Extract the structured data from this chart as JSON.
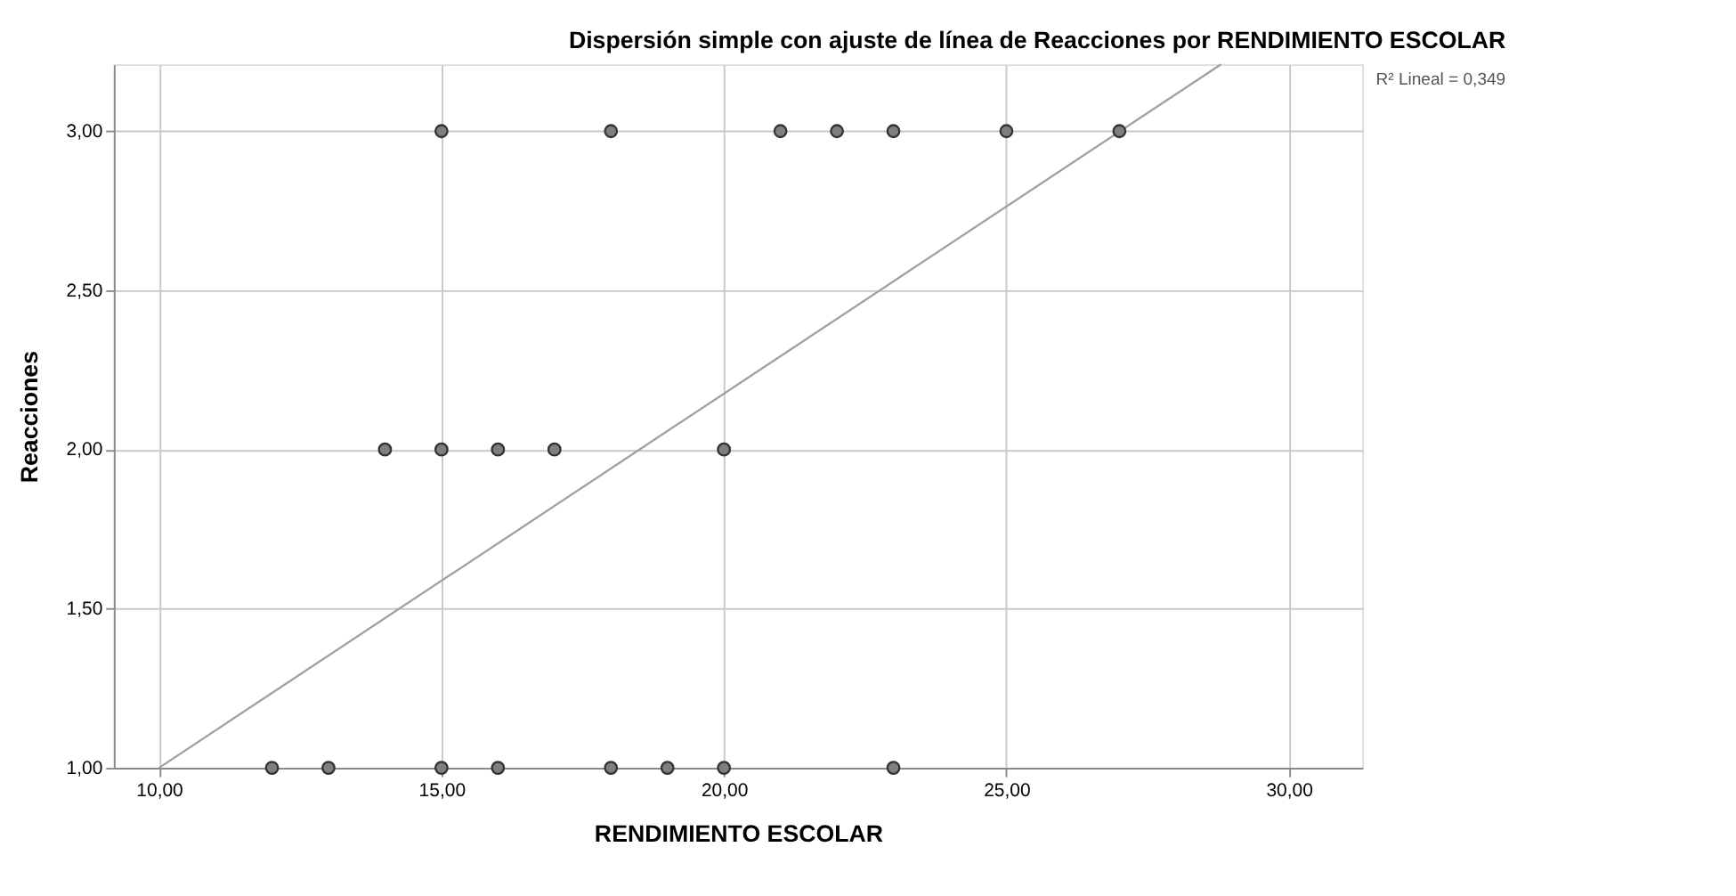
{
  "chart_data": {
    "type": "scatter",
    "title": "Dispersión simple con ajuste de línea de Reacciones por RENDIMIENTO ESCOLAR",
    "xlabel": "RENDIMIENTO ESCOLAR",
    "ylabel": "Reacciones",
    "annotations": [
      "R² Lineal = 0,349"
    ],
    "series": [
      {
        "color": "#7f7f7f",
        "x": [
          15,
          18,
          21,
          22,
          23,
          25,
          27,
          14,
          15,
          16,
          17,
          20,
          12,
          13,
          15,
          16,
          18,
          19,
          20,
          23
        ],
        "values": [
          3,
          3,
          3,
          3,
          3,
          3,
          3,
          2,
          2,
          2,
          2,
          2,
          1,
          1,
          1,
          1,
          1,
          1,
          1,
          1
        ]
      },
      {
        "type": "line",
        "color": "#a0a0a0",
        "marker": "none",
        "line_style": "solid",
        "x": [
          10.0,
          28.8
        ],
        "values": [
          1.0,
          3.21
        ]
      }
    ],
    "xlim": [
      9.2,
      31.3
    ],
    "ylim": [
      1.0,
      3.21
    ],
    "xticks": [
      {
        "value": 10,
        "label": "10,00"
      },
      {
        "value": 15,
        "label": "15,00"
      },
      {
        "value": 20,
        "label": "20,00"
      },
      {
        "value": 25,
        "label": "25,00"
      },
      {
        "value": 30,
        "label": "30,00"
      }
    ],
    "yticks": [
      {
        "value": 1,
        "label": "1,00"
      },
      {
        "value": 1.5,
        "label": "1,50"
      },
      {
        "value": 2,
        "label": "2,00"
      },
      {
        "value": 2.5,
        "label": "2,50"
      },
      {
        "value": 3,
        "label": "3,00"
      }
    ],
    "grid": true,
    "marker": "circle"
  }
}
